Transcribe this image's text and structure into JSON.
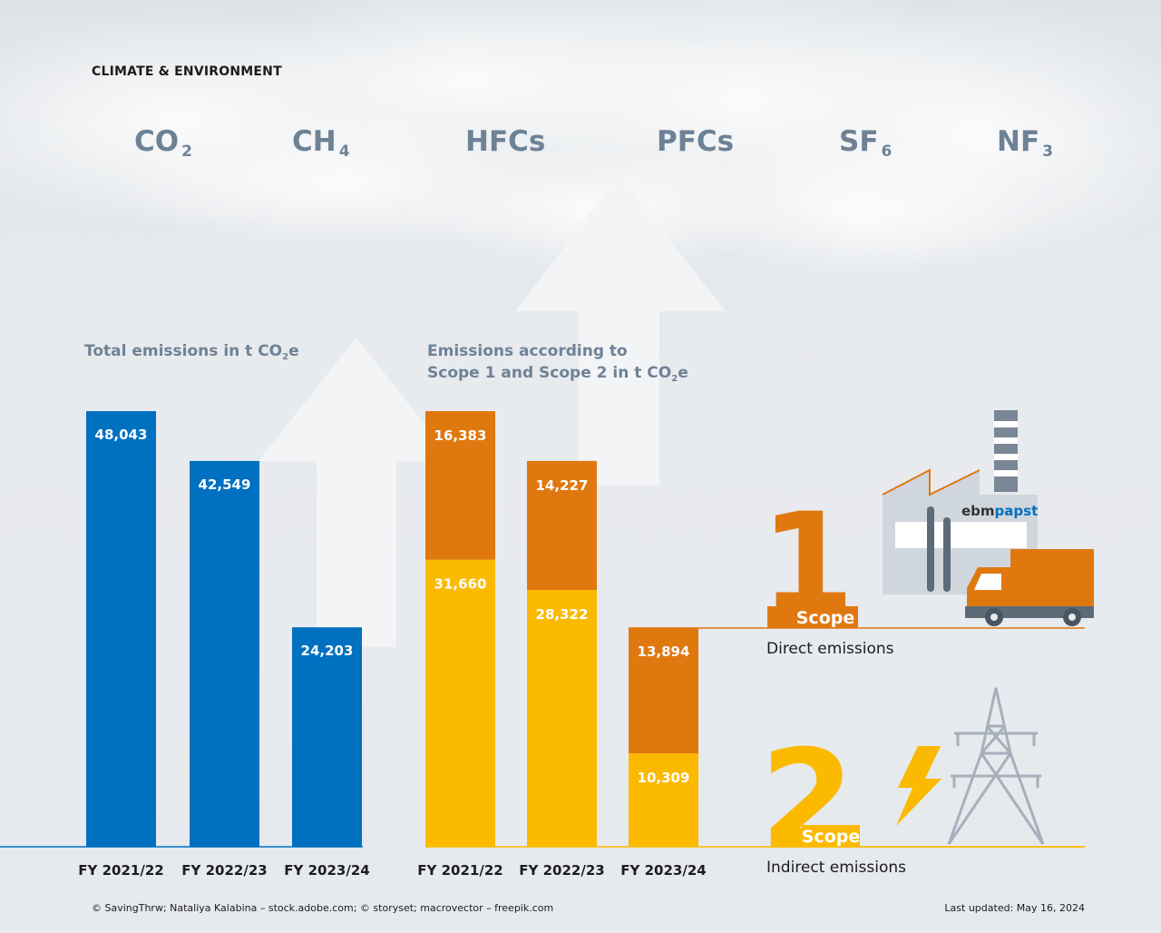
{
  "header": {
    "section_label": "CLIMATE & ENVIRONMENT",
    "gases": [
      {
        "base": "CO",
        "sub": "2"
      },
      {
        "base": "CH",
        "sub": "4"
      },
      {
        "base": "HFCs",
        "sub": ""
      },
      {
        "base": "PFCs",
        "sub": ""
      },
      {
        "base": "SF",
        "sub": "6"
      },
      {
        "base": "NF",
        "sub": "3"
      }
    ]
  },
  "chart_data": [
    {
      "type": "bar",
      "title_text": "Total emissions in t CO",
      "title_sub": "2",
      "title_end": "e",
      "categories": [
        "FY 2021/22",
        "FY 2022/23",
        "FY 2023/24"
      ],
      "values": [
        48043,
        42549,
        24203
      ],
      "value_labels": [
        "48,043",
        "42,549",
        "24,203"
      ],
      "colors": {
        "bar": "#0070c0"
      }
    },
    {
      "type": "bar",
      "stacked": true,
      "title_line1": "Emissions according to",
      "title_line2_text": "Scope 1 and Scope 2 in t CO",
      "title_sub": "2",
      "title_end": "e",
      "categories": [
        "FY 2021/22",
        "FY 2022/23",
        "FY 2023/24"
      ],
      "series": [
        {
          "values": [
            31660,
            28322,
            10309
          ],
          "value_labels": [
            "31,660",
            "28,322",
            "10,309"
          ],
          "color": "#fbb900"
        },
        {
          "values": [
            16383,
            14227,
            13894
          ],
          "value_labels": [
            "16,383",
            "14,227",
            "13,894"
          ],
          "color": "#e07810"
        }
      ]
    }
  ],
  "legend": {
    "scope1": {
      "number": "1",
      "word": "Scope",
      "description": "Direct emissions",
      "color": "#e07810",
      "icon": "factory-truck-icon",
      "brand_prefix": "ebm",
      "brand_suffix": "papst"
    },
    "scope2": {
      "number": "2",
      "word": "Scope",
      "description": "Indirect emissions",
      "color": "#fbb900",
      "icon": "power-tower-icon",
      "bolt_icon": "lightning-icon"
    }
  },
  "footer": {
    "credits": "© SavingThrw; Nataliya Kalabina – stock.adobe.com; © storyset; macrovector – freepik.com",
    "updated": "Last updated: May 16, 2024"
  },
  "colors": {
    "accent_gray": "#6e8296",
    "blue": "#0070c0",
    "orange": "#e07810",
    "yellow": "#fbb900"
  }
}
